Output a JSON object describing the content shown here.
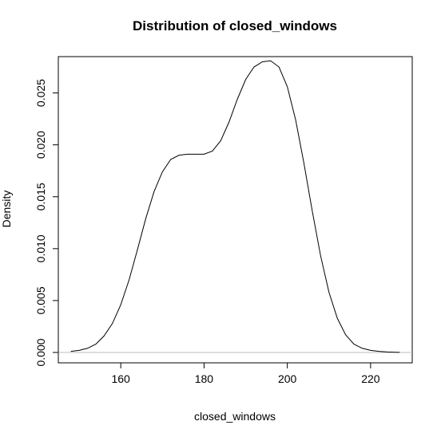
{
  "chart_data": {
    "type": "line",
    "title": "Distribution of closed_windows",
    "xlabel": "closed_windows",
    "ylabel": "Density",
    "xlim": [
      145,
      230
    ],
    "ylim": [
      -0.001,
      0.0285
    ],
    "x_ticks": [
      160,
      180,
      200,
      220
    ],
    "y_ticks": [
      0.0,
      0.005,
      0.01,
      0.015,
      0.02,
      0.025
    ],
    "x_tick_labels": [
      "160",
      "180",
      "200",
      "220"
    ],
    "y_tick_labels": [
      "0.000",
      "0.005",
      "0.010",
      "0.015",
      "0.020",
      "0.025"
    ],
    "grid": false,
    "reference_line": {
      "y": 0,
      "color": "#bebebe"
    },
    "series": [
      {
        "color": "#000000",
        "x": [
          148,
          150,
          152,
          154,
          156,
          158,
          160,
          162,
          164,
          166,
          168,
          170,
          172,
          174,
          176,
          178,
          180,
          182,
          184,
          186,
          188,
          190,
          192,
          194,
          196,
          198,
          200,
          202,
          204,
          206,
          208,
          210,
          212,
          214,
          216,
          218,
          220,
          222,
          224,
          226,
          227
        ],
        "y": [
          0.0001,
          0.0002,
          0.0004,
          0.0008,
          0.0016,
          0.0028,
          0.0046,
          0.007,
          0.0099,
          0.0129,
          0.0155,
          0.0174,
          0.0186,
          0.019,
          0.0191,
          0.0191,
          0.0191,
          0.0194,
          0.0204,
          0.0222,
          0.0244,
          0.0263,
          0.0275,
          0.028,
          0.0281,
          0.0275,
          0.0256,
          0.0224,
          0.0182,
          0.0136,
          0.0093,
          0.0058,
          0.0033,
          0.0017,
          0.0008,
          0.0004,
          0.0002,
          0.0001,
          5e-05,
          2e-05,
          1e-05
        ]
      }
    ]
  }
}
